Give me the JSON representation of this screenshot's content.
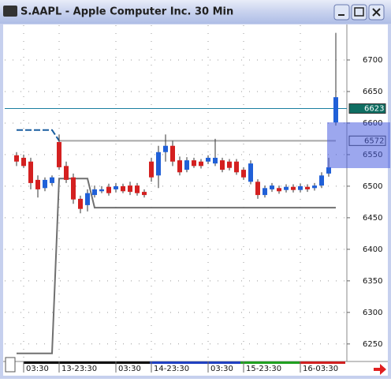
{
  "window": {
    "title": "S.AAPL - Apple Computer Inc. 30 Min"
  },
  "chart_data": {
    "type": "candlestick",
    "categories": [
      null,
      "03:30",
      null,
      null,
      null,
      null,
      "13-23:30",
      null,
      null,
      null,
      null,
      null,
      null,
      null,
      "03:30",
      null,
      null,
      null,
      null,
      "14-23:30",
      null,
      null,
      null,
      null,
      null,
      null,
      null,
      "03:30",
      null,
      null,
      null,
      null,
      "15-23:30",
      null,
      null,
      null,
      null,
      null,
      null,
      null,
      "16-03:30",
      null,
      null,
      null,
      null,
      null
    ],
    "open": [
      6549,
      6545,
      6539,
      6510,
      6497,
      6505,
      6570,
      6532,
      6514,
      6480,
      6470,
      6486,
      6492,
      6499,
      6495,
      6500,
      6501,
      6501,
      6491,
      6539,
      6517,
      6554,
      6564,
      6541,
      6526,
      6541,
      6539,
      6539,
      6536,
      6541,
      6539,
      6539,
      6526,
      6507,
      6507,
      6486,
      6495,
      6497,
      6494,
      6499,
      6494,
      6499,
      6497,
      6501,
      6520,
      6601
    ],
    "close": [
      6539,
      6532,
      6505,
      6495,
      6510,
      6514,
      6530,
      6510,
      6479,
      6464,
      6489,
      6495,
      6495,
      6489,
      6500,
      6492,
      6491,
      6489,
      6486,
      6514,
      6554,
      6564,
      6539,
      6522,
      6541,
      6532,
      6532,
      6545,
      6545,
      6526,
      6529,
      6522,
      6514,
      6536,
      6486,
      6497,
      6501,
      6492,
      6499,
      6494,
      6500,
      6495,
      6501,
      6517,
      6530,
      6641
    ],
    "high": [
      6554,
      6550,
      6545,
      6517,
      6514,
      6517,
      6582,
      6539,
      6520,
      6485,
      6495,
      6501,
      6500,
      6504,
      6505,
      6504,
      6507,
      6505,
      6495,
      6545,
      6564,
      6582,
      6572,
      6547,
      6546,
      6545,
      6543,
      6549,
      6575,
      6545,
      6543,
      6543,
      6530,
      6541,
      6511,
      6501,
      6505,
      6501,
      6503,
      6503,
      6504,
      6503,
      6505,
      6522,
      6545,
      6743
    ],
    "low": [
      6532,
      6529,
      6495,
      6482,
      6492,
      6501,
      6526,
      6505,
      6472,
      6457,
      6460,
      6482,
      6489,
      6485,
      6490,
      6489,
      6486,
      6485,
      6482,
      6507,
      6497,
      6539,
      6532,
      6517,
      6522,
      6529,
      6528,
      6535,
      6532,
      6522,
      6525,
      6518,
      6510,
      6503,
      6480,
      6482,
      6491,
      6488,
      6490,
      6490,
      6490,
      6491,
      6493,
      6497,
      6515,
      6596
    ],
    "up_color": "#2060d8",
    "down_color": "#d42020",
    "lines": [
      {
        "color": "#1a5fa0",
        "dashed": true,
        "x": [
          0,
          5,
          6
        ],
        "values": [
          6589,
          6589,
          6572
        ]
      },
      {
        "color": "#a8a8a8",
        "dashed": false,
        "x": [
          6,
          45
        ],
        "values": [
          6572,
          6572
        ]
      },
      {
        "color": "#707070",
        "dashed": false,
        "x": [
          0,
          5,
          6,
          10,
          11,
          45
        ],
        "values": [
          6235,
          6235,
          6512,
          6512,
          6466,
          6466
        ]
      }
    ],
    "price_markers": [
      {
        "value": 6623,
        "color": "#1a7fa0",
        "box": "#0f6e62",
        "line": true
      },
      {
        "value": 6572,
        "color": "#a8a8a8",
        "box": "#ffffff",
        "line": false
      }
    ],
    "ylim": [
      6226,
      6755
    ],
    "yticks": [
      6250,
      6300,
      6350,
      6400,
      6450,
      6500,
      6550,
      6600,
      6650,
      6700
    ],
    "grid": true
  }
}
